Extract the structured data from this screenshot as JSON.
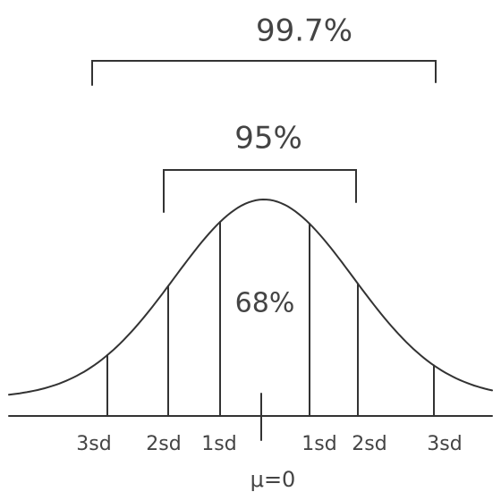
{
  "labels": {
    "outer": "99.7%",
    "middle": "95%",
    "inner": "68%"
  },
  "axis_labels": [
    "3sd",
    "2sd",
    "1sd",
    "1sd",
    "2sd",
    "3sd"
  ],
  "mean_label": "μ=0"
}
